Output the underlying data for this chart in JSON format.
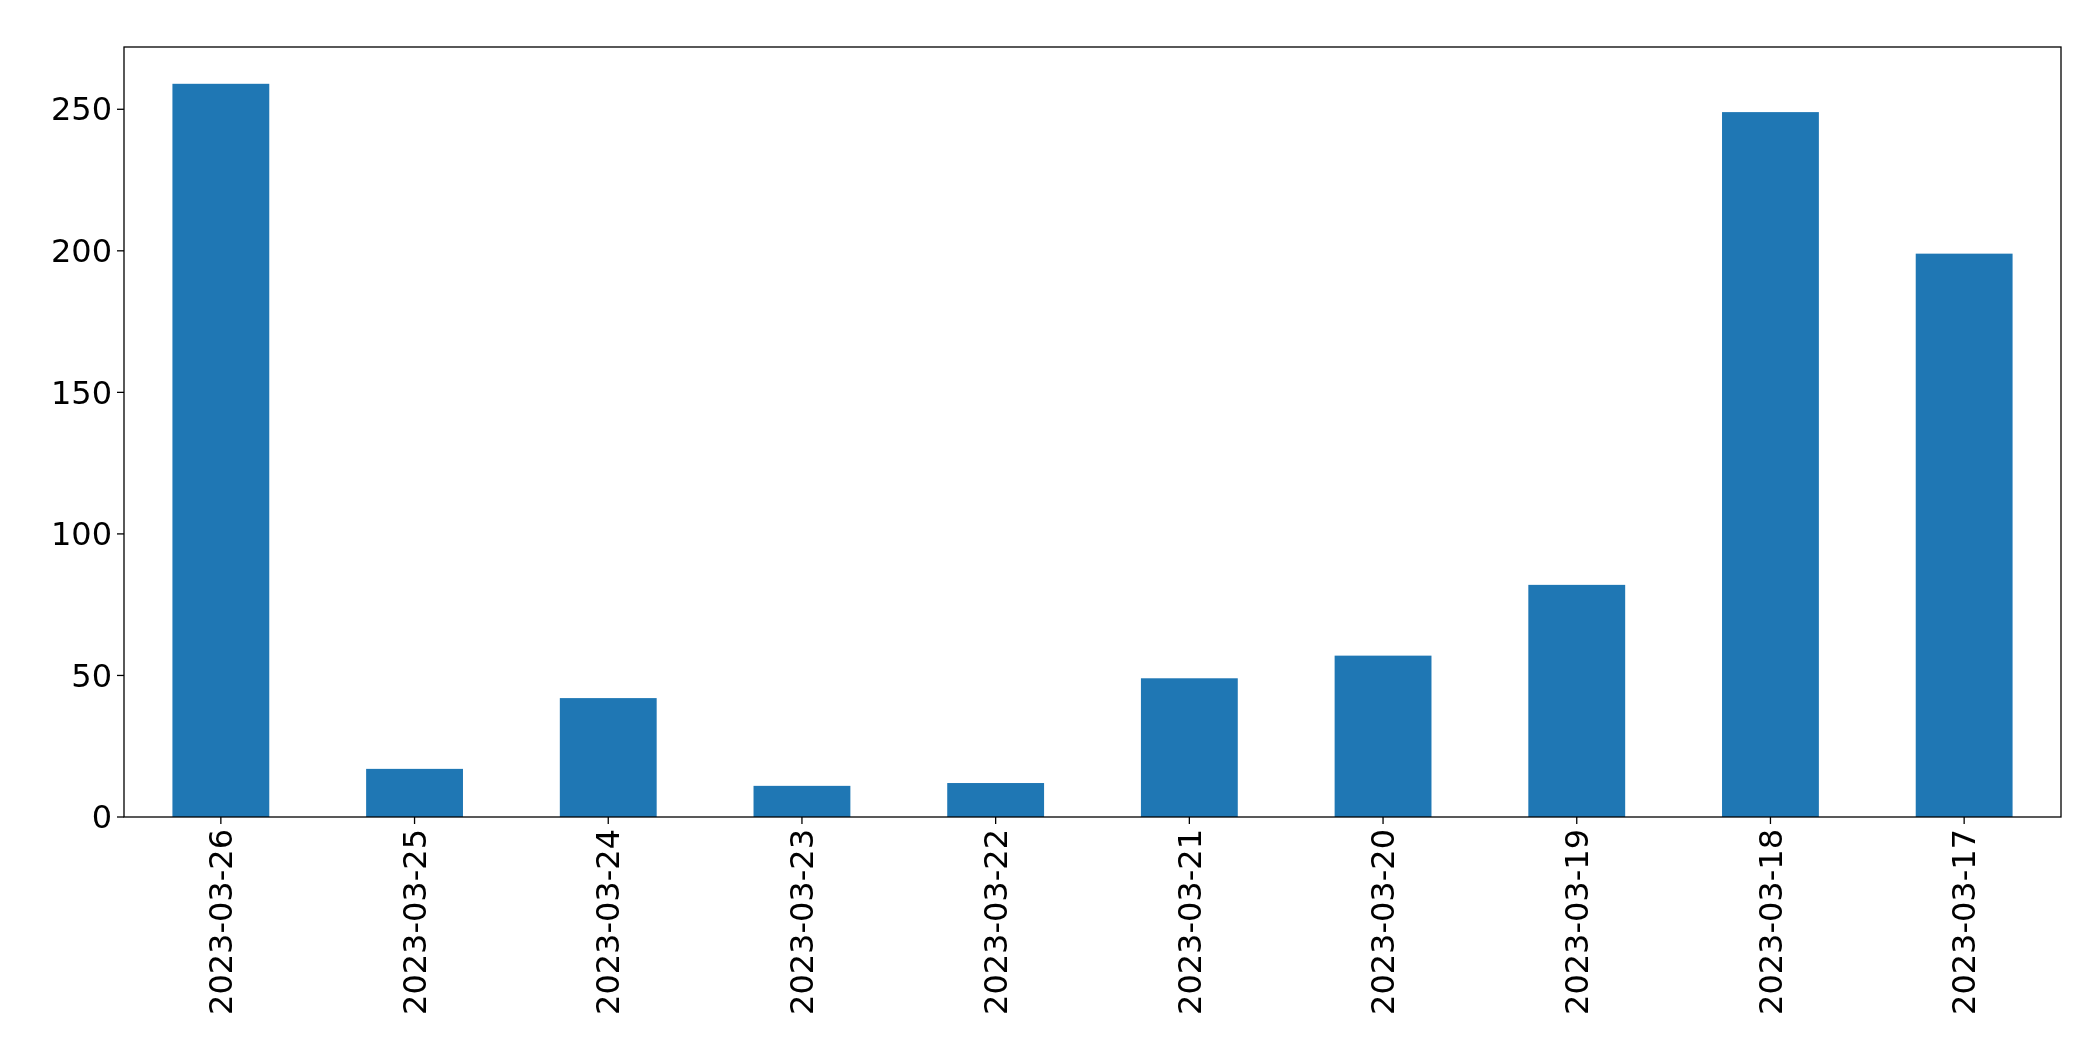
{
  "chart_data": {
    "type": "bar",
    "categories": [
      "2023-03-26",
      "2023-03-25",
      "2023-03-24",
      "2023-03-23",
      "2023-03-22",
      "2023-03-21",
      "2023-03-20",
      "2023-03-19",
      "2023-03-18",
      "2023-03-17"
    ],
    "values": [
      259,
      17,
      42,
      11,
      12,
      49,
      57,
      82,
      249,
      199
    ],
    "color": "#1f77b4",
    "ylim": [
      0,
      272
    ],
    "yticks": [
      0,
      50,
      100,
      150,
      200,
      250
    ],
    "grid": false
  }
}
